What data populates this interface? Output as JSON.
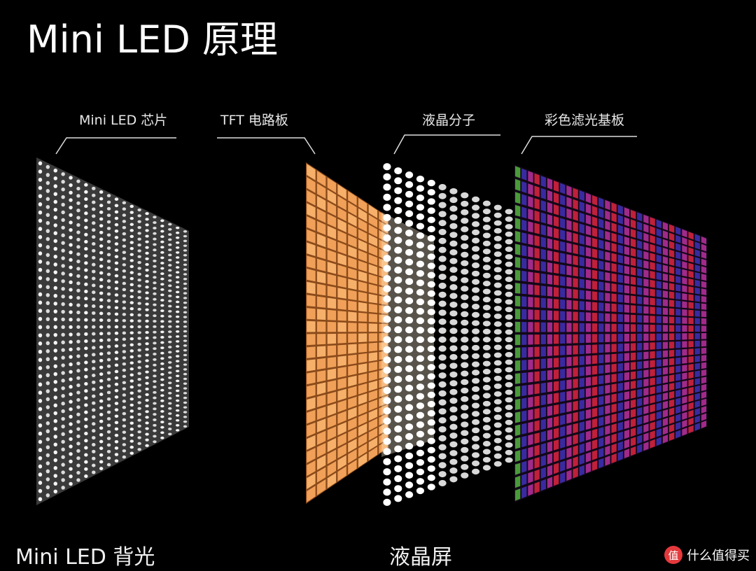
{
  "title": "Mini LED 原理",
  "labels": [
    "Mini LED 芯片",
    "TFT 电路板",
    "液晶分子",
    "彩色滤光基板"
  ],
  "captions": [
    "Mini LED 背光",
    "液晶屏"
  ],
  "watermark": {
    "logo": "值",
    "text": "什么值得买"
  }
}
